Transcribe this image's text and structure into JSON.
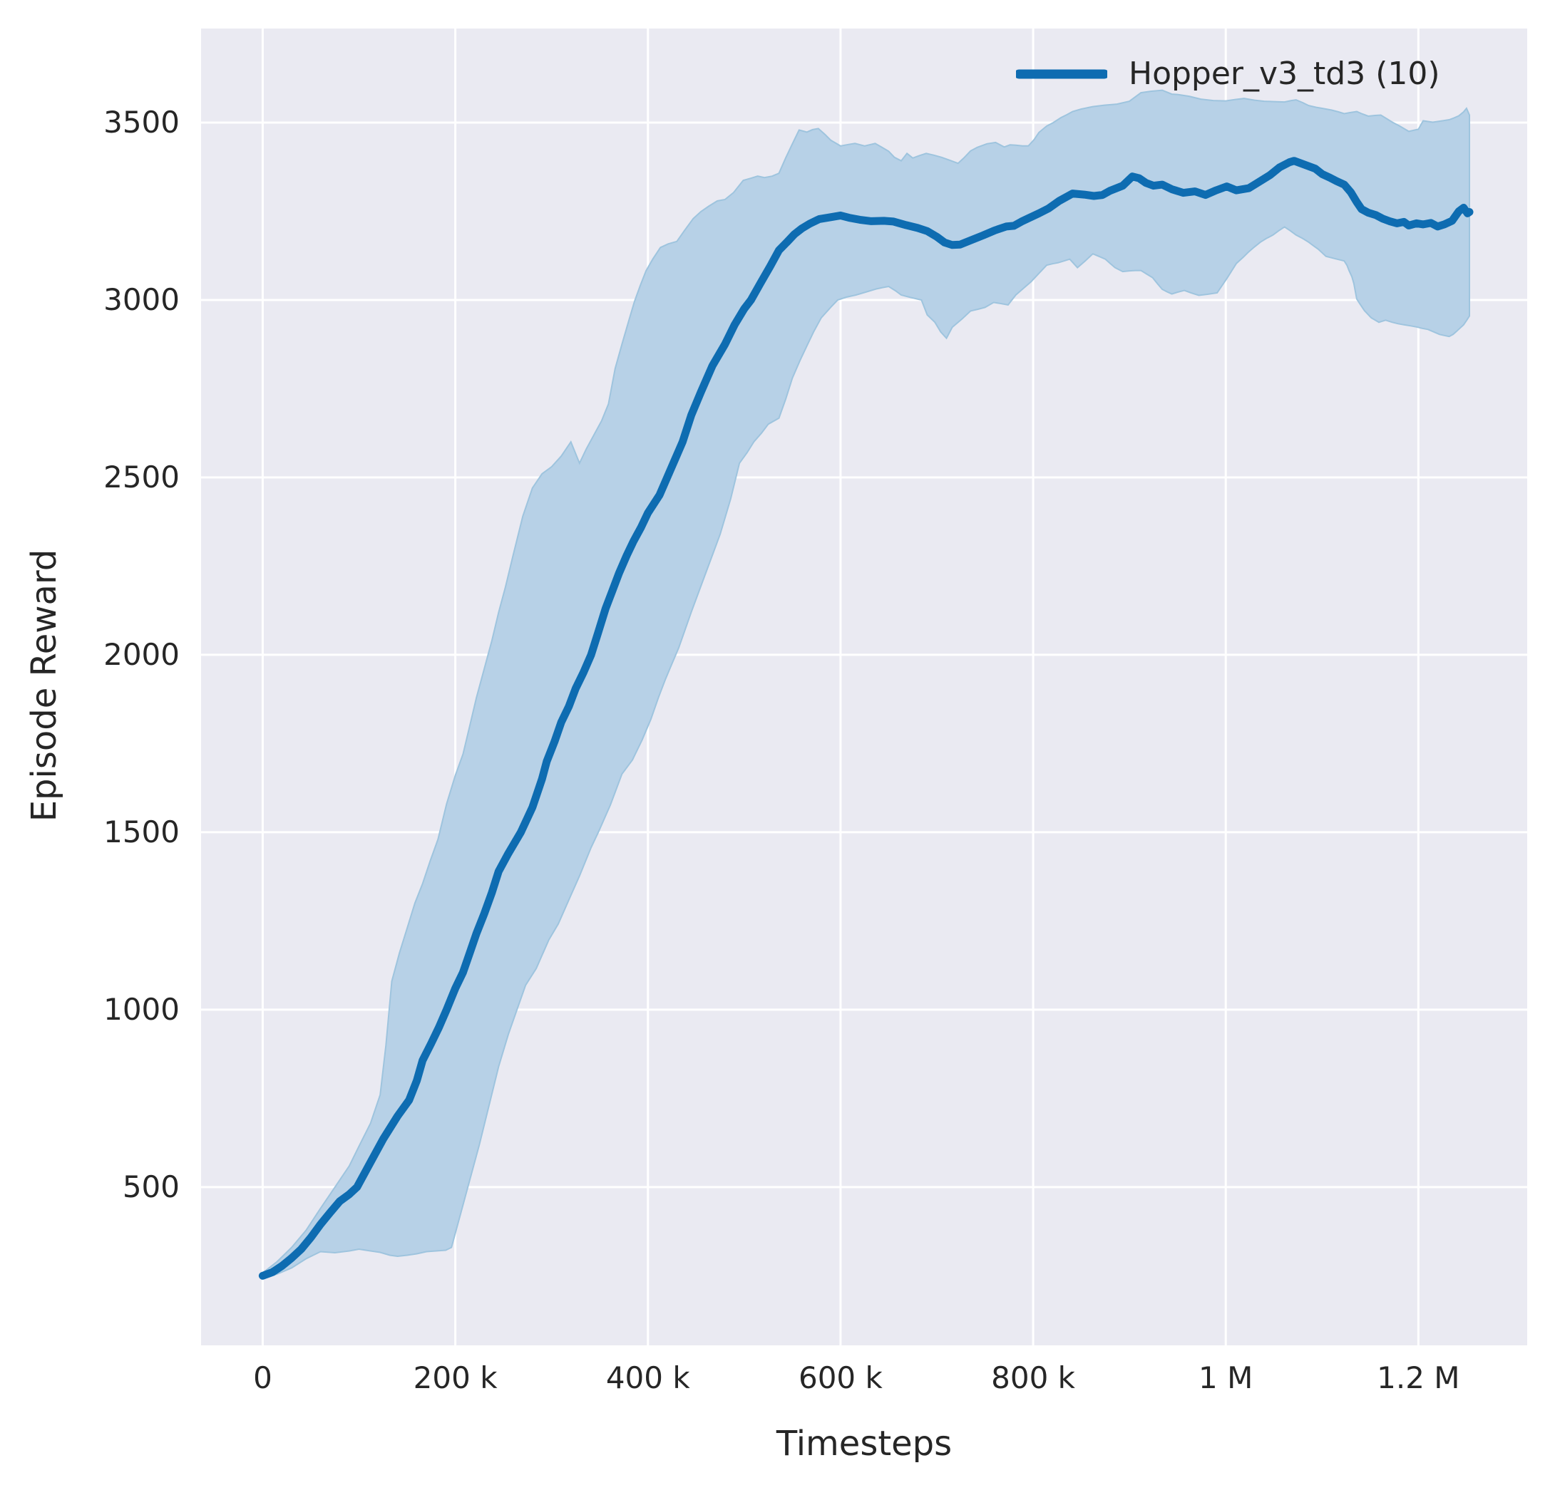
{
  "legend": {
    "label": "Hopper_v3_td3 (10)"
  },
  "colors": {
    "line": "#0e6cb1",
    "band_fill": "#b7d1e7",
    "band_edge": "#9ec4de",
    "plot_background": "#eaeaf2",
    "gridline": "#ffffff",
    "text": "#262626"
  },
  "chart_data": {
    "type": "line",
    "title": "",
    "xlabel": "Timesteps",
    "ylabel": "Episode Reward",
    "grid": true,
    "legend_position": "upper right",
    "xlim": [
      -64000,
      1313000
    ],
    "ylim": [
      54,
      3765
    ],
    "x_unit": 1000,
    "x_ticks": [
      {
        "v": 0,
        "label": "0"
      },
      {
        "v": 200000,
        "label": "200 k"
      },
      {
        "v": 400000,
        "label": "400 k"
      },
      {
        "v": 600000,
        "label": "600 k"
      },
      {
        "v": 800000,
        "label": "800 k"
      },
      {
        "v": 1000000,
        "label": "1 M"
      },
      {
        "v": 1200000,
        "label": "1.2 M"
      }
    ],
    "y_ticks": [
      {
        "v": 500,
        "label": "500"
      },
      {
        "v": 1000,
        "label": "1000"
      },
      {
        "v": 1500,
        "label": "1500"
      },
      {
        "v": 2000,
        "label": "2000"
      },
      {
        "v": 2500,
        "label": "2500"
      },
      {
        "v": 3000,
        "label": "3000"
      },
      {
        "v": 3500,
        "label": "3500"
      }
    ],
    "series": [
      {
        "name": "Hopper_v3_td3 (10)",
        "x": [
          0,
          10,
          20,
          30,
          40,
          50,
          60,
          70,
          80,
          90,
          98,
          110,
          125,
          140,
          152,
          160,
          166,
          175,
          183,
          191,
          200,
          208,
          215,
          222,
          230,
          238,
          245,
          255,
          268,
          280,
          290,
          295,
          303,
          310,
          318,
          325,
          333,
          341,
          348,
          356,
          363,
          370,
          378,
          385,
          393,
          400,
          412,
          420,
          428,
          436,
          445,
          455,
          467,
          480,
          490,
          500,
          507,
          517,
          527,
          536,
          544,
          552,
          560,
          568,
          578,
          587,
          600,
          610,
          620,
          632,
          645,
          655,
          668,
          680,
          690,
          700,
          708,
          716,
          724,
          735,
          748,
          760,
          772,
          780,
          788,
          795,
          806,
          816,
          827,
          841,
          853,
          863,
          872,
          880,
          893,
          903,
          910,
          917,
          925,
          934,
          944,
          956,
          968,
          979,
          990,
          1001,
          1011,
          1024,
          1036,
          1046,
          1056,
          1066,
          1071,
          1081,
          1093,
          1100,
          1108,
          1115,
          1123,
          1130,
          1136,
          1141,
          1148,
          1156,
          1163,
          1170,
          1178,
          1185,
          1190,
          1198,
          1205,
          1213,
          1220,
          1227,
          1235,
          1242,
          1247,
          1251,
          1253
        ],
        "y": [
          250,
          260,
          278,
          300,
          325,
          358,
          395,
          428,
          460,
          480,
          500,
          560,
          635,
          700,
          745,
          800,
          857,
          905,
          950,
          1000,
          1060,
          1105,
          1160,
          1215,
          1270,
          1330,
          1390,
          1440,
          1500,
          1570,
          1650,
          1700,
          1755,
          1810,
          1855,
          1905,
          1950,
          2000,
          2060,
          2130,
          2180,
          2230,
          2280,
          2320,
          2360,
          2400,
          2450,
          2500,
          2550,
          2600,
          2675,
          2740,
          2815,
          2875,
          2930,
          2975,
          3000,
          3048,
          3095,
          3140,
          3162,
          3185,
          3202,
          3215,
          3228,
          3232,
          3238,
          3231,
          3226,
          3222,
          3223,
          3221,
          3211,
          3203,
          3194,
          3178,
          3162,
          3155,
          3156,
          3168,
          3182,
          3196,
          3207,
          3209,
          3221,
          3230,
          3244,
          3258,
          3279,
          3300,
          3297,
          3293,
          3296,
          3308,
          3322,
          3348,
          3343,
          3330,
          3322,
          3325,
          3312,
          3302,
          3306,
          3296,
          3309,
          3320,
          3309,
          3315,
          3335,
          3352,
          3374,
          3388,
          3392,
          3382,
          3370,
          3355,
          3345,
          3335,
          3325,
          3303,
          3276,
          3256,
          3246,
          3239,
          3229,
          3222,
          3216,
          3220,
          3210,
          3216,
          3213,
          3217,
          3207,
          3213,
          3223,
          3250,
          3260,
          3244,
          3248
        ]
      }
    ],
    "band": {
      "x_upper": [
        0,
        15,
        30,
        45,
        60,
        75,
        90,
        100,
        112,
        122,
        128,
        134,
        142,
        150,
        158,
        166,
        174,
        182,
        191,
        200,
        208,
        215,
        222,
        230,
        238,
        245,
        252,
        260,
        270,
        280,
        290,
        300,
        310,
        320,
        329,
        336,
        344,
        352,
        359,
        366,
        373,
        380,
        386,
        392,
        398,
        405,
        413,
        421,
        430,
        438,
        447,
        455,
        463,
        472,
        480,
        489,
        499,
        507,
        514,
        521,
        529,
        536,
        543,
        550,
        557,
        565,
        571,
        577,
        584,
        590,
        600,
        608,
        615,
        625,
        636,
        643,
        650,
        656,
        663,
        669,
        675,
        682,
        689,
        697,
        705,
        714,
        722,
        728,
        735,
        742,
        752,
        761,
        770,
        776,
        782,
        789,
        795,
        801,
        806,
        814,
        821,
        829,
        835,
        841,
        850,
        862,
        874,
        887,
        900,
        912,
        922,
        934,
        944,
        950,
        962,
        974,
        987,
        1000,
        1010,
        1019,
        1030,
        1040,
        1050,
        1061,
        1068,
        1073,
        1080,
        1086,
        1094,
        1100,
        1110,
        1117,
        1123,
        1129,
        1136,
        1142,
        1148,
        1155,
        1161,
        1167,
        1173,
        1180,
        1185,
        1190,
        1195,
        1200,
        1205,
        1210,
        1215,
        1220,
        1225,
        1232,
        1237,
        1242,
        1247,
        1250,
        1253
      ],
      "upper": [
        258,
        290,
        330,
        378,
        440,
        500,
        560,
        615,
        680,
        760,
        900,
        1080,
        1160,
        1230,
        1300,
        1355,
        1420,
        1480,
        1580,
        1660,
        1720,
        1800,
        1880,
        1960,
        2040,
        2120,
        2190,
        2280,
        2390,
        2470,
        2510,
        2530,
        2560,
        2600,
        2540,
        2580,
        2620,
        2660,
        2707,
        2807,
        2875,
        2940,
        2995,
        3040,
        3082,
        3115,
        3148,
        3158,
        3165,
        3196,
        3229,
        3249,
        3264,
        3279,
        3283,
        3303,
        3337,
        3343,
        3349,
        3345,
        3349,
        3357,
        3400,
        3440,
        3479,
        3473,
        3480,
        3483,
        3466,
        3450,
        3434,
        3438,
        3441,
        3434,
        3441,
        3430,
        3419,
        3402,
        3392,
        3413,
        3400,
        3407,
        3413,
        3408,
        3402,
        3393,
        3385,
        3400,
        3420,
        3430,
        3440,
        3444,
        3431,
        3437,
        3436,
        3434,
        3434,
        3452,
        3472,
        3490,
        3500,
        3514,
        3522,
        3531,
        3538,
        3545,
        3549,
        3552,
        3560,
        3584,
        3588,
        3591,
        3580,
        3579,
        3574,
        3566,
        3562,
        3561,
        3565,
        3568,
        3563,
        3560,
        3559,
        3558,
        3562,
        3564,
        3556,
        3548,
        3543,
        3540,
        3535,
        3530,
        3525,
        3528,
        3531,
        3524,
        3518,
        3520,
        3521,
        3511,
        3501,
        3491,
        3483,
        3475,
        3478,
        3481,
        3505,
        3503,
        3501,
        3503,
        3505,
        3508,
        3513,
        3519,
        3530,
        3540,
        3521
      ],
      "x_lower": [
        0,
        15,
        30,
        45,
        60,
        75,
        90,
        100,
        112,
        122,
        132,
        140,
        150,
        160,
        170,
        180,
        190,
        196,
        205,
        215,
        225,
        235,
        245,
        255,
        264,
        273,
        284,
        297,
        307,
        319,
        329,
        341,
        349,
        361,
        373,
        384,
        394,
        403,
        411,
        418,
        425,
        432,
        445,
        460,
        475,
        486,
        495,
        503,
        510,
        518,
        525,
        536,
        543,
        550,
        558,
        565,
        572,
        580,
        590,
        597,
        606,
        616,
        626,
        637,
        644,
        650,
        657,
        663,
        673,
        684,
        690,
        698,
        704,
        710,
        716,
        726,
        735,
        743,
        750,
        759,
        766,
        774,
        782,
        790,
        798,
        806,
        814,
        820,
        826,
        832,
        838,
        846,
        854,
        862,
        869,
        875,
        880,
        885,
        893,
        900,
        906,
        912,
        918,
        924,
        929,
        934,
        939,
        944,
        950,
        957,
        964,
        972,
        981,
        991,
        1001,
        1011,
        1018,
        1024,
        1030,
        1036,
        1042,
        1049,
        1055,
        1061,
        1067,
        1073,
        1080,
        1086,
        1091,
        1096,
        1100,
        1104,
        1114,
        1123,
        1126,
        1128,
        1131,
        1133,
        1136,
        1139,
        1144,
        1151,
        1159,
        1166,
        1173,
        1179,
        1185,
        1192,
        1198,
        1204,
        1210,
        1216,
        1222,
        1227,
        1232,
        1236,
        1239,
        1243,
        1247,
        1250,
        1253
      ],
      "lower": [
        243,
        255,
        272,
        298,
        318,
        315,
        320,
        325,
        320,
        316,
        308,
        305,
        308,
        312,
        318,
        320,
        322,
        330,
        420,
        520,
        620,
        730,
        840,
        930,
        1000,
        1069,
        1116,
        1196,
        1242,
        1316,
        1377,
        1457,
        1503,
        1577,
        1664,
        1704,
        1760,
        1818,
        1880,
        1930,
        1975,
        2020,
        2120,
        2230,
        2340,
        2440,
        2540,
        2570,
        2600,
        2625,
        2650,
        2667,
        2720,
        2780,
        2830,
        2870,
        2910,
        2950,
        2980,
        3000,
        3008,
        3014,
        3022,
        3031,
        3035,
        3038,
        3026,
        3014,
        3007,
        3000,
        2958,
        2937,
        2910,
        2892,
        2923,
        2946,
        2969,
        2974,
        2979,
        2993,
        2990,
        2986,
        3014,
        3033,
        3052,
        3075,
        3098,
        3102,
        3105,
        3110,
        3115,
        3091,
        3110,
        3130,
        3122,
        3115,
        3103,
        3091,
        3080,
        3082,
        3083,
        3083,
        3073,
        3063,
        3046,
        3030,
        3023,
        3017,
        3022,
        3027,
        3020,
        3013,
        3016,
        3020,
        3060,
        3103,
        3120,
        3136,
        3150,
        3163,
        3173,
        3183,
        3195,
        3206,
        3195,
        3183,
        3173,
        3163,
        3153,
        3143,
        3133,
        3123,
        3116,
        3110,
        3097,
        3083,
        3065,
        3046,
        3003,
        2990,
        2970,
        2950,
        2937,
        2943,
        2937,
        2933,
        2930,
        2927,
        2924,
        2920,
        2917,
        2910,
        2903,
        2900,
        2897,
        2903,
        2910,
        2920,
        2930,
        2942,
        2955
      ]
    }
  }
}
